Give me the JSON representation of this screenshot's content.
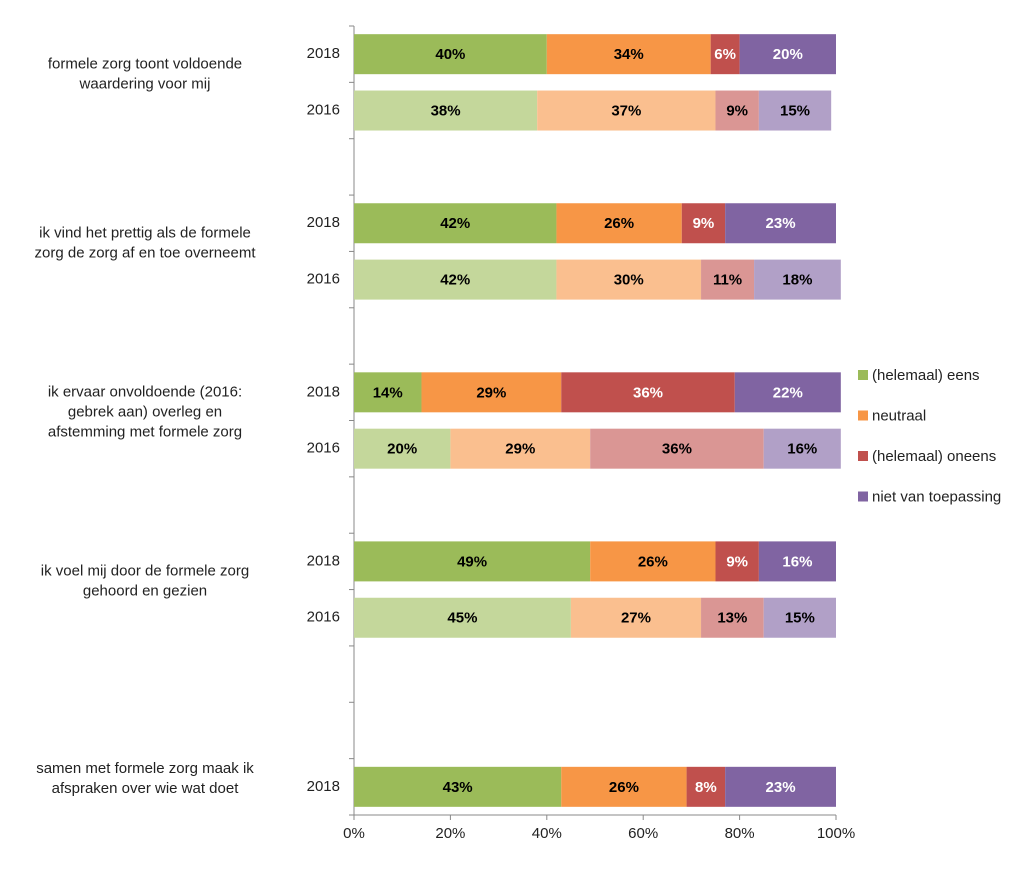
{
  "chart_data": {
    "type": "stacked-barh",
    "categories": [
      "2018",
      "2016",
      null,
      "2018",
      "2016",
      null,
      "2018",
      "2016",
      null,
      "2018",
      "2016",
      null,
      null,
      "2018"
    ],
    "groups": [
      [
        "formele zorg toont voldoende",
        "waardering voor mij"
      ],
      [
        "ik vind het prettig als de formele",
        "zorg de zorg af en toe overneemt"
      ],
      [
        "ik ervaar onvoldoende (2016:",
        "gebrek aan) overleg en",
        "afstemming met formele zorg"
      ],
      [
        "ik voel mij door de formele zorg",
        "gehoord en gezien"
      ],
      [
        "samen met formele zorg maak ik",
        "afspraken over wie wat doet"
      ]
    ],
    "series": [
      {
        "name": "(helemaal) eens",
        "colors": [
          "#9bbb59",
          "#c4d79b",
          null,
          "#9bbb59",
          "#c4d79b",
          null,
          "#9bbb59",
          "#c4d79b",
          null,
          "#9bbb59",
          "#c4d79b",
          null,
          null,
          "#9bbb59"
        ],
        "values": [
          40,
          38,
          null,
          42,
          42,
          null,
          14,
          20,
          null,
          49,
          45,
          null,
          null,
          43
        ],
        "value_labels": [
          "40%",
          "38%",
          null,
          "42%",
          "42%",
          null,
          "14%",
          "20%",
          null,
          "49%",
          "45%",
          null,
          null,
          "43%"
        ]
      },
      {
        "name": "neutraal",
        "colors": [
          "#f79646",
          "#fabf8f",
          null,
          "#f79646",
          "#fabf8f",
          null,
          "#f79646",
          "#fabf8f",
          null,
          "#f79646",
          "#fabf8f",
          null,
          null,
          "#f79646"
        ],
        "values": [
          34,
          37,
          null,
          26,
          30,
          null,
          29,
          29,
          null,
          26,
          27,
          null,
          null,
          26
        ],
        "value_labels": [
          "34%",
          "37%",
          null,
          "26%",
          "30%",
          null,
          "29%",
          "29%",
          null,
          "26%",
          "27%",
          null,
          null,
          "26%"
        ]
      },
      {
        "name": "(helemaal) oneens",
        "colors": [
          "#c0504d",
          "#da9694",
          null,
          "#c0504d",
          "#da9694",
          null,
          "#c0504d",
          "#da9694",
          null,
          "#c0504d",
          "#da9694",
          null,
          null,
          "#c0504d"
        ],
        "values": [
          6,
          9,
          null,
          9,
          11,
          null,
          36,
          36,
          null,
          9,
          13,
          null,
          null,
          8
        ],
        "value_labels": [
          "6%",
          "9%",
          null,
          "9%",
          "11%",
          null,
          "36%",
          "36%",
          null,
          "9%",
          "13%",
          null,
          null,
          "8%"
        ]
      },
      {
        "name": "niet van toepassing",
        "colors": [
          "#8064a2",
          "#b1a0c7",
          null,
          "#8064a2",
          "#b1a0c7",
          null,
          "#8064a2",
          "#b1a0c7",
          null,
          "#8064a2",
          "#b1a0c7",
          null,
          null,
          "#8064a2"
        ],
        "values": [
          20,
          15,
          null,
          23,
          18,
          null,
          22,
          16,
          null,
          16,
          15,
          null,
          null,
          23
        ],
        "value_labels": [
          "20%",
          "15%",
          null,
          "23%",
          "18%",
          null,
          "22%",
          "16%",
          null,
          "16%",
          "15%",
          null,
          null,
          "23%"
        ]
      }
    ],
    "xlim": [
      0,
      100
    ],
    "xticks": [
      {
        "value": 0,
        "label": "0%"
      },
      {
        "value": 20,
        "label": "20%"
      },
      {
        "value": 40,
        "label": "40%"
      },
      {
        "value": 60,
        "label": "60%"
      },
      {
        "value": 80,
        "label": "80%"
      },
      {
        "value": 100,
        "label": "100%"
      }
    ],
    "legend": "right"
  }
}
